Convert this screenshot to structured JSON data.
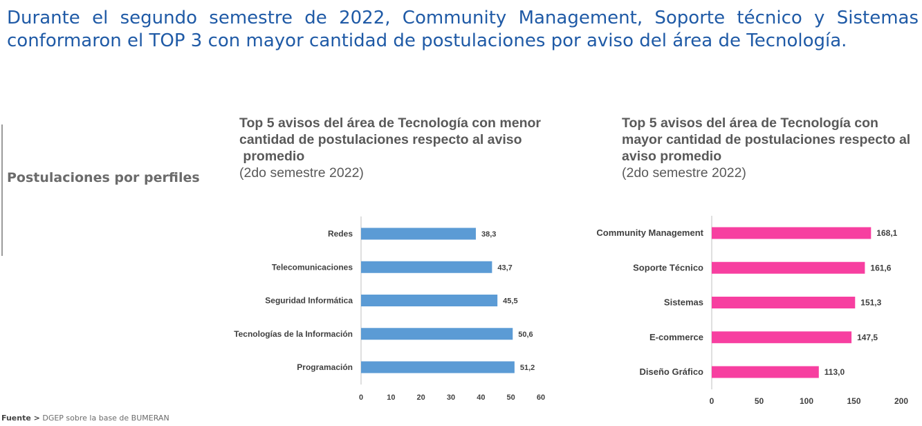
{
  "headline": {
    "line1": "Durante el segundo semestre de 2022, Community Management, Soporte técnico y Sistemas",
    "line2": "conformaron el TOP 3 con mayor cantidad de postulaciones por aviso del área de Tecnología."
  },
  "side_label": "Postulaciones por perfiles",
  "source": {
    "label": "Fuente >",
    "text": "DGEP sobre la base de BUMERAN"
  },
  "chart_data": [
    {
      "type": "bar",
      "orientation": "horizontal",
      "title_lines": [
        "Top 5 avisos del área de Tecnología con menor",
        "cantidad de postulaciones respecto al aviso",
        " promedio"
      ],
      "subtitle": "(2do semestre 2022)",
      "categories": [
        "Redes",
        "Telecomunicaciones",
        "Seguridad Informática",
        "Tecnologías de la Información",
        "Programación"
      ],
      "values": [
        38.3,
        43.7,
        45.5,
        50.6,
        51.2
      ],
      "value_labels": [
        "38,3",
        "43,7",
        "45,5",
        "50,6",
        "51,2"
      ],
      "xlim": [
        0,
        60
      ],
      "ticks": [
        0,
        10,
        20,
        30,
        40,
        50,
        60
      ],
      "color": "#5b9bd5",
      "grid": false,
      "xlabel": "",
      "ylabel": ""
    },
    {
      "type": "bar",
      "orientation": "horizontal",
      "title_lines": [
        "Top 5 avisos del área de Tecnología con",
        "mayor cantidad de postulaciones respecto al",
        "aviso promedio"
      ],
      "subtitle": "(2do semestre 2022)",
      "categories": [
        "Community Management",
        "Soporte Técnico",
        "Sistemas",
        "E-commerce",
        "Diseño Gráfico"
      ],
      "values": [
        168.1,
        161.6,
        151.3,
        147.5,
        113.0
      ],
      "value_labels": [
        "168,1",
        "161,6",
        "151,3",
        "147,5",
        "113,0"
      ],
      "xlim": [
        0,
        200
      ],
      "ticks": [
        0,
        50,
        100,
        150,
        200
      ],
      "color": "#f73fa0",
      "grid": false,
      "xlabel": "",
      "ylabel": ""
    }
  ]
}
